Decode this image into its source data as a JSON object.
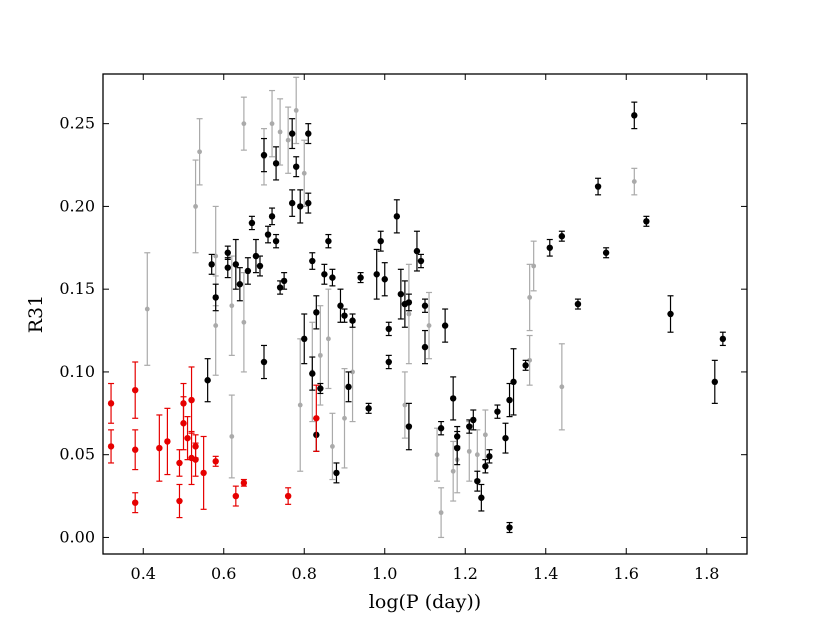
{
  "chart_data": {
    "type": "scatter",
    "xlabel": "log(P (day))",
    "ylabel": "R31",
    "xlim": [
      0.3,
      1.9
    ],
    "ylim": [
      -0.01,
      0.28
    ],
    "xticks": [
      "0.4",
      "0.6",
      "0.8",
      "1.0",
      "1.2",
      "1.4",
      "1.6",
      "1.8"
    ],
    "yticks": [
      "0.00",
      "0.05",
      "0.10",
      "0.15",
      "0.20",
      "0.25"
    ],
    "grid": false,
    "legend": "none",
    "series": [
      {
        "color": "#aaaaaa",
        "points": [
          [
            0.41,
            0.138,
            0.034
          ],
          [
            0.54,
            0.233,
            0.02
          ],
          [
            0.53,
            0.2,
            0.028
          ],
          [
            0.58,
            0.17,
            0.03
          ],
          [
            0.58,
            0.128,
            0.03
          ],
          [
            0.62,
            0.061,
            0.025
          ],
          [
            0.62,
            0.14,
            0.03
          ],
          [
            0.65,
            0.25,
            0.016
          ],
          [
            0.65,
            0.13,
            0.03
          ],
          [
            0.7,
            0.23,
            0.017
          ],
          [
            0.72,
            0.25,
            0.02
          ],
          [
            0.74,
            0.245,
            0.02
          ],
          [
            0.76,
            0.24,
            0.02
          ],
          [
            0.78,
            0.258,
            0.02
          ],
          [
            0.8,
            0.22,
            0.02
          ],
          [
            0.79,
            0.08,
            0.04
          ],
          [
            0.82,
            0.1,
            0.03
          ],
          [
            0.84,
            0.11,
            0.03
          ],
          [
            0.86,
            0.12,
            0.03
          ],
          [
            0.87,
            0.055,
            0.02
          ],
          [
            0.9,
            0.072,
            0.03
          ],
          [
            0.92,
            0.1,
            0.03
          ],
          [
            1.05,
            0.08,
            0.02
          ],
          [
            1.06,
            0.135,
            0.03
          ],
          [
            1.11,
            0.128,
            0.02
          ],
          [
            1.13,
            0.05,
            0.016
          ],
          [
            1.14,
            0.015,
            0.015
          ],
          [
            1.18,
            0.047,
            0.02
          ],
          [
            1.17,
            0.04,
            0.018
          ],
          [
            1.21,
            0.052,
            0.018
          ],
          [
            1.23,
            0.05,
            0.015
          ],
          [
            1.25,
            0.062,
            0.015
          ],
          [
            1.36,
            0.145,
            0.02
          ],
          [
            1.37,
            0.164,
            0.015
          ],
          [
            1.36,
            0.107,
            0.015
          ],
          [
            1.44,
            0.091,
            0.026
          ],
          [
            1.62,
            0.215,
            0.008
          ]
        ]
      },
      {
        "color": "#000000",
        "points": [
          [
            0.56,
            0.095,
            0.013
          ],
          [
            0.57,
            0.165,
            0.006
          ],
          [
            0.58,
            0.145,
            0.008
          ],
          [
            0.61,
            0.172,
            0.004
          ],
          [
            0.61,
            0.163,
            0.006
          ],
          [
            0.63,
            0.165,
            0.015
          ],
          [
            0.64,
            0.153,
            0.01
          ],
          [
            0.66,
            0.161,
            0.008
          ],
          [
            0.67,
            0.19,
            0.004
          ],
          [
            0.68,
            0.17,
            0.01
          ],
          [
            0.69,
            0.164,
            0.006
          ],
          [
            0.7,
            0.106,
            0.01
          ],
          [
            0.7,
            0.231,
            0.01
          ],
          [
            0.71,
            0.183,
            0.005
          ],
          [
            0.72,
            0.194,
            0.005
          ],
          [
            0.73,
            0.179,
            0.004
          ],
          [
            0.73,
            0.226,
            0.01
          ],
          [
            0.74,
            0.151,
            0.004
          ],
          [
            0.75,
            0.155,
            0.005
          ],
          [
            0.77,
            0.202,
            0.008
          ],
          [
            0.77,
            0.244,
            0.009
          ],
          [
            0.78,
            0.224,
            0.006
          ],
          [
            0.79,
            0.2,
            0.01
          ],
          [
            0.8,
            0.12,
            0.015
          ],
          [
            0.81,
            0.244,
            0.006
          ],
          [
            0.81,
            0.202,
            0.006
          ],
          [
            0.82,
            0.167,
            0.005
          ],
          [
            0.82,
            0.099,
            0.01
          ],
          [
            0.83,
            0.062,
            0.01
          ],
          [
            0.83,
            0.136,
            0.01
          ],
          [
            0.84,
            0.09,
            0.003
          ],
          [
            0.85,
            0.159,
            0.006
          ],
          [
            0.86,
            0.179,
            0.004
          ],
          [
            0.87,
            0.157,
            0.005
          ],
          [
            0.88,
            0.039,
            0.006
          ],
          [
            0.89,
            0.14,
            0.01
          ],
          [
            0.9,
            0.134,
            0.004
          ],
          [
            0.91,
            0.091,
            0.009
          ],
          [
            0.92,
            0.131,
            0.004
          ],
          [
            0.94,
            0.157,
            0.003
          ],
          [
            0.96,
            0.078,
            0.003
          ],
          [
            0.98,
            0.159,
            0.015
          ],
          [
            0.99,
            0.179,
            0.006
          ],
          [
            1.0,
            0.156,
            0.01
          ],
          [
            1.01,
            0.106,
            0.004
          ],
          [
            1.01,
            0.126,
            0.004
          ],
          [
            1.03,
            0.194,
            0.01
          ],
          [
            1.04,
            0.147,
            0.015
          ],
          [
            1.05,
            0.141,
            0.014
          ],
          [
            1.06,
            0.142,
            0.005
          ],
          [
            1.06,
            0.067,
            0.014
          ],
          [
            1.08,
            0.173,
            0.012
          ],
          [
            1.09,
            0.167,
            0.004
          ],
          [
            1.1,
            0.115,
            0.01
          ],
          [
            1.1,
            0.14,
            0.004
          ],
          [
            1.14,
            0.066,
            0.004
          ],
          [
            1.15,
            0.128,
            0.01
          ],
          [
            1.17,
            0.084,
            0.013
          ],
          [
            1.18,
            0.061,
            0.006
          ],
          [
            1.18,
            0.054,
            0.01
          ],
          [
            1.21,
            0.067,
            0.004
          ],
          [
            1.22,
            0.071,
            0.006
          ],
          [
            1.23,
            0.034,
            0.006
          ],
          [
            1.24,
            0.024,
            0.008
          ],
          [
            1.25,
            0.043,
            0.004
          ],
          [
            1.26,
            0.049,
            0.004
          ],
          [
            1.28,
            0.076,
            0.004
          ],
          [
            1.3,
            0.06,
            0.009
          ],
          [
            1.31,
            0.006,
            0.003
          ],
          [
            1.31,
            0.083,
            0.01
          ],
          [
            1.32,
            0.094,
            0.02
          ],
          [
            1.35,
            0.104,
            0.003
          ],
          [
            1.41,
            0.175,
            0.005
          ],
          [
            1.44,
            0.182,
            0.003
          ],
          [
            1.48,
            0.141,
            0.003
          ],
          [
            1.53,
            0.212,
            0.005
          ],
          [
            1.55,
            0.172,
            0.003
          ],
          [
            1.62,
            0.255,
            0.008
          ],
          [
            1.65,
            0.191,
            0.003
          ],
          [
            1.71,
            0.135,
            0.011
          ],
          [
            1.82,
            0.094,
            0.013
          ],
          [
            1.84,
            0.12,
            0.004
          ]
        ]
      },
      {
        "color": "#e60000",
        "points": [
          [
            0.32,
            0.081,
            0.012
          ],
          [
            0.32,
            0.055,
            0.01
          ],
          [
            0.38,
            0.089,
            0.017
          ],
          [
            0.38,
            0.053,
            0.012
          ],
          [
            0.38,
            0.021,
            0.006
          ],
          [
            0.44,
            0.054,
            0.02
          ],
          [
            0.46,
            0.058,
            0.02
          ],
          [
            0.49,
            0.045,
            0.008
          ],
          [
            0.49,
            0.022,
            0.01
          ],
          [
            0.5,
            0.081,
            0.012
          ],
          [
            0.5,
            0.069,
            0.016
          ],
          [
            0.51,
            0.06,
            0.013
          ],
          [
            0.52,
            0.083,
            0.02
          ],
          [
            0.52,
            0.048,
            0.016
          ],
          [
            0.53,
            0.055,
            0.007
          ],
          [
            0.53,
            0.047,
            0.01
          ],
          [
            0.55,
            0.039,
            0.022
          ],
          [
            0.58,
            0.046,
            0.003
          ],
          [
            0.63,
            0.025,
            0.006
          ],
          [
            0.65,
            0.033,
            0.002
          ],
          [
            0.76,
            0.025,
            0.005
          ],
          [
            0.83,
            0.072,
            0.02
          ]
        ]
      }
    ]
  }
}
